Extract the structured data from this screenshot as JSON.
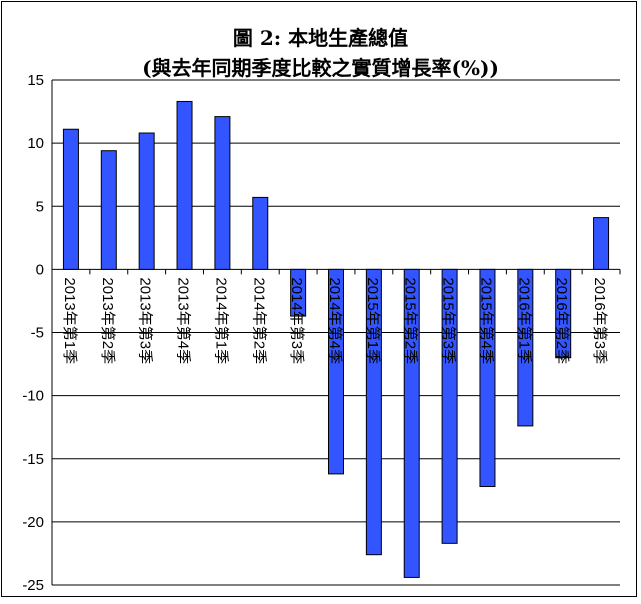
{
  "chart_data": {
    "type": "bar",
    "title": "圖 2: 本地生產總值",
    "subtitle": "(與去年同期季度比較之實質增長率(%))",
    "xlabel": "",
    "ylabel": "",
    "ylim": [
      -25,
      15
    ],
    "yticks": [
      15,
      10,
      5,
      0,
      -5,
      -10,
      -15,
      -20,
      -25
    ],
    "grid": true,
    "bar_color": "#3355ff",
    "categories": [
      "2013年第1季",
      "2013年第2季",
      "2013年第3季",
      "2013年第4季",
      "2014年第1季",
      "2014年第2季",
      "2014年第3季",
      "2014年第4季",
      "2015年第1季",
      "2015年第2季",
      "2015年第3季",
      "2015年第4季",
      "2016年第1季",
      "2016年第2季",
      "2016年第3季"
    ],
    "values": [
      11.1,
      9.4,
      10.8,
      13.3,
      12.1,
      5.7,
      -3.7,
      -16.2,
      -22.6,
      -24.4,
      -21.7,
      -17.2,
      -12.4,
      -7.0,
      4.1
    ]
  }
}
